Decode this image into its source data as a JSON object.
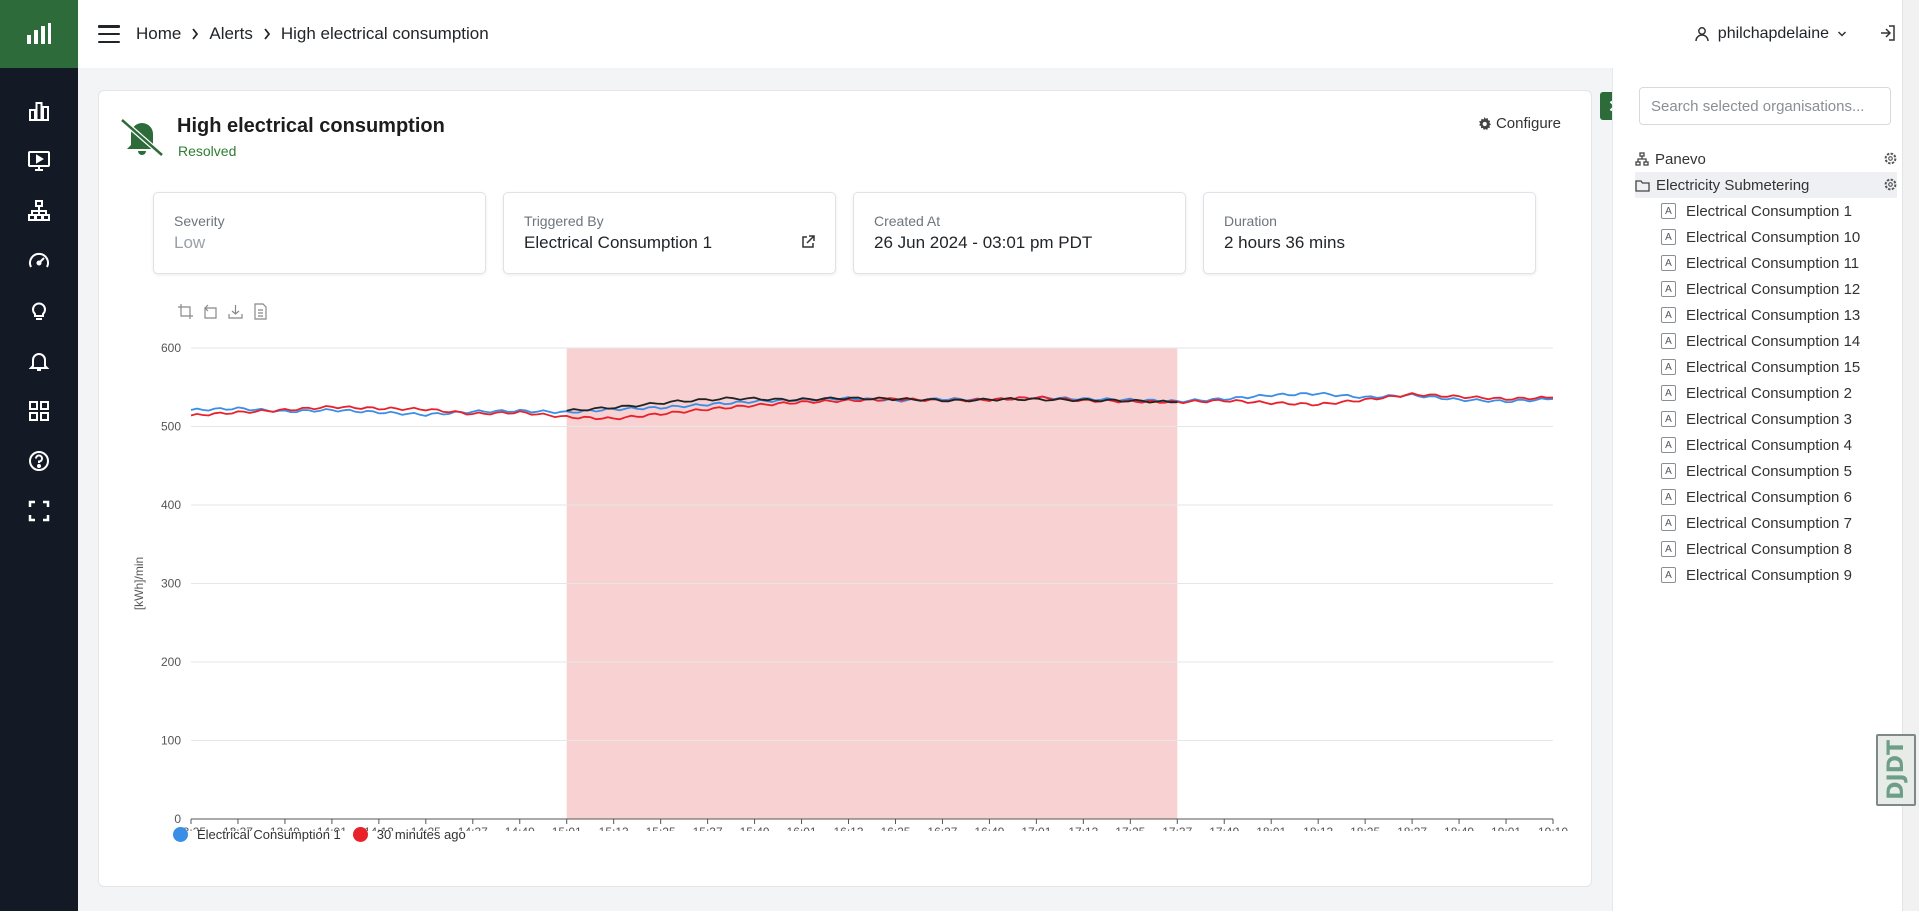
{
  "topbar": {
    "breadcrumbs": [
      "Home",
      "Alerts",
      "High electrical consumption"
    ],
    "username": "philchapdelaine"
  },
  "sidebar": {
    "icons": [
      "bar-chart-icon",
      "monitor-icon",
      "hierarchy-icon",
      "gauge-icon",
      "lightbulb-icon",
      "bell-icon",
      "grid-icon",
      "help-icon",
      "fullscreen-icon"
    ]
  },
  "alert": {
    "title": "High electrical consumption",
    "status": "Resolved",
    "configure_label": "Configure",
    "status_color": "#2e7d32"
  },
  "info": {
    "severity_label": "Severity",
    "severity_value": "Low",
    "triggered_label": "Triggered By",
    "triggered_value": "Electrical Consumption 1",
    "created_label": "Created At",
    "created_value": "26 Jun 2024 - 03:01 pm PDT",
    "duration_label": "Duration",
    "duration_value": "2 hours 36 mins"
  },
  "chart_data": {
    "type": "line",
    "ylabel": "[kWh]/min",
    "ylim": [
      0,
      600
    ],
    "yticks": [
      "0",
      "100",
      "200",
      "300",
      "400",
      "500",
      "600"
    ],
    "x_times": [
      "13:25",
      "13:37",
      "13:49",
      "14:01",
      "14:13",
      "14:25",
      "14:37",
      "14:49",
      "15:01",
      "15:13",
      "15:25",
      "15:37",
      "15:49",
      "16:01",
      "16:13",
      "16:25",
      "16:37",
      "16:49",
      "17:01",
      "17:13",
      "17:25",
      "17:37",
      "17:49",
      "18:01",
      "18:13",
      "18:25",
      "18:37",
      "18:49",
      "19:01",
      "19:10"
    ],
    "x_date": "06-26",
    "alert_range": [
      "15:01",
      "17:37"
    ],
    "series": [
      {
        "name": "Electrical Consumption 1",
        "color": "#3a8ee6",
        "values": [
          521,
          523,
          519,
          521,
          518,
          515,
          519,
          520,
          518,
          522,
          524,
          528,
          532,
          534,
          536,
          533,
          535,
          534,
          537,
          535,
          534,
          532,
          535,
          540,
          542,
          537,
          540,
          534,
          532,
          535
        ]
      },
      {
        "name": "30 minutes ago",
        "color": "#e8212b",
        "values": [
          514,
          518,
          521,
          525,
          523,
          522,
          516,
          518,
          512,
          510,
          516,
          522,
          527,
          531,
          533,
          535,
          533,
          534,
          537,
          533,
          532,
          531,
          533,
          530,
          528,
          534,
          541,
          538,
          535,
          537
        ]
      }
    ],
    "highlight_series": {
      "color": "#222222",
      "values": [
        520,
        525,
        532,
        536,
        534,
        536,
        535,
        533,
        535,
        534,
        533,
        531
      ]
    },
    "legend": [
      "Electrical Consumption 1",
      "30 minutes ago"
    ]
  },
  "orgs": {
    "search_placeholder": "Search selected organisations...",
    "root": "Panevo",
    "folder": "Electricity Submetering",
    "badge": "A",
    "items": [
      "Electrical Consumption 1",
      "Electrical Consumption 10",
      "Electrical Consumption 11",
      "Electrical Consumption 12",
      "Electrical Consumption 13",
      "Electrical Consumption 14",
      "Electrical Consumption 15",
      "Electrical Consumption 2",
      "Electrical Consumption 3",
      "Electrical Consumption 4",
      "Electrical Consumption 5",
      "Electrical Consumption 6",
      "Electrical Consumption 7",
      "Electrical Consumption 8",
      "Electrical Consumption 9"
    ]
  },
  "widget": {
    "text": "DJDT"
  },
  "colors": {
    "sidebar_bg": "#131a26",
    "brand_green": "#2e6b3b",
    "alert_band": "#f8d2d2"
  }
}
